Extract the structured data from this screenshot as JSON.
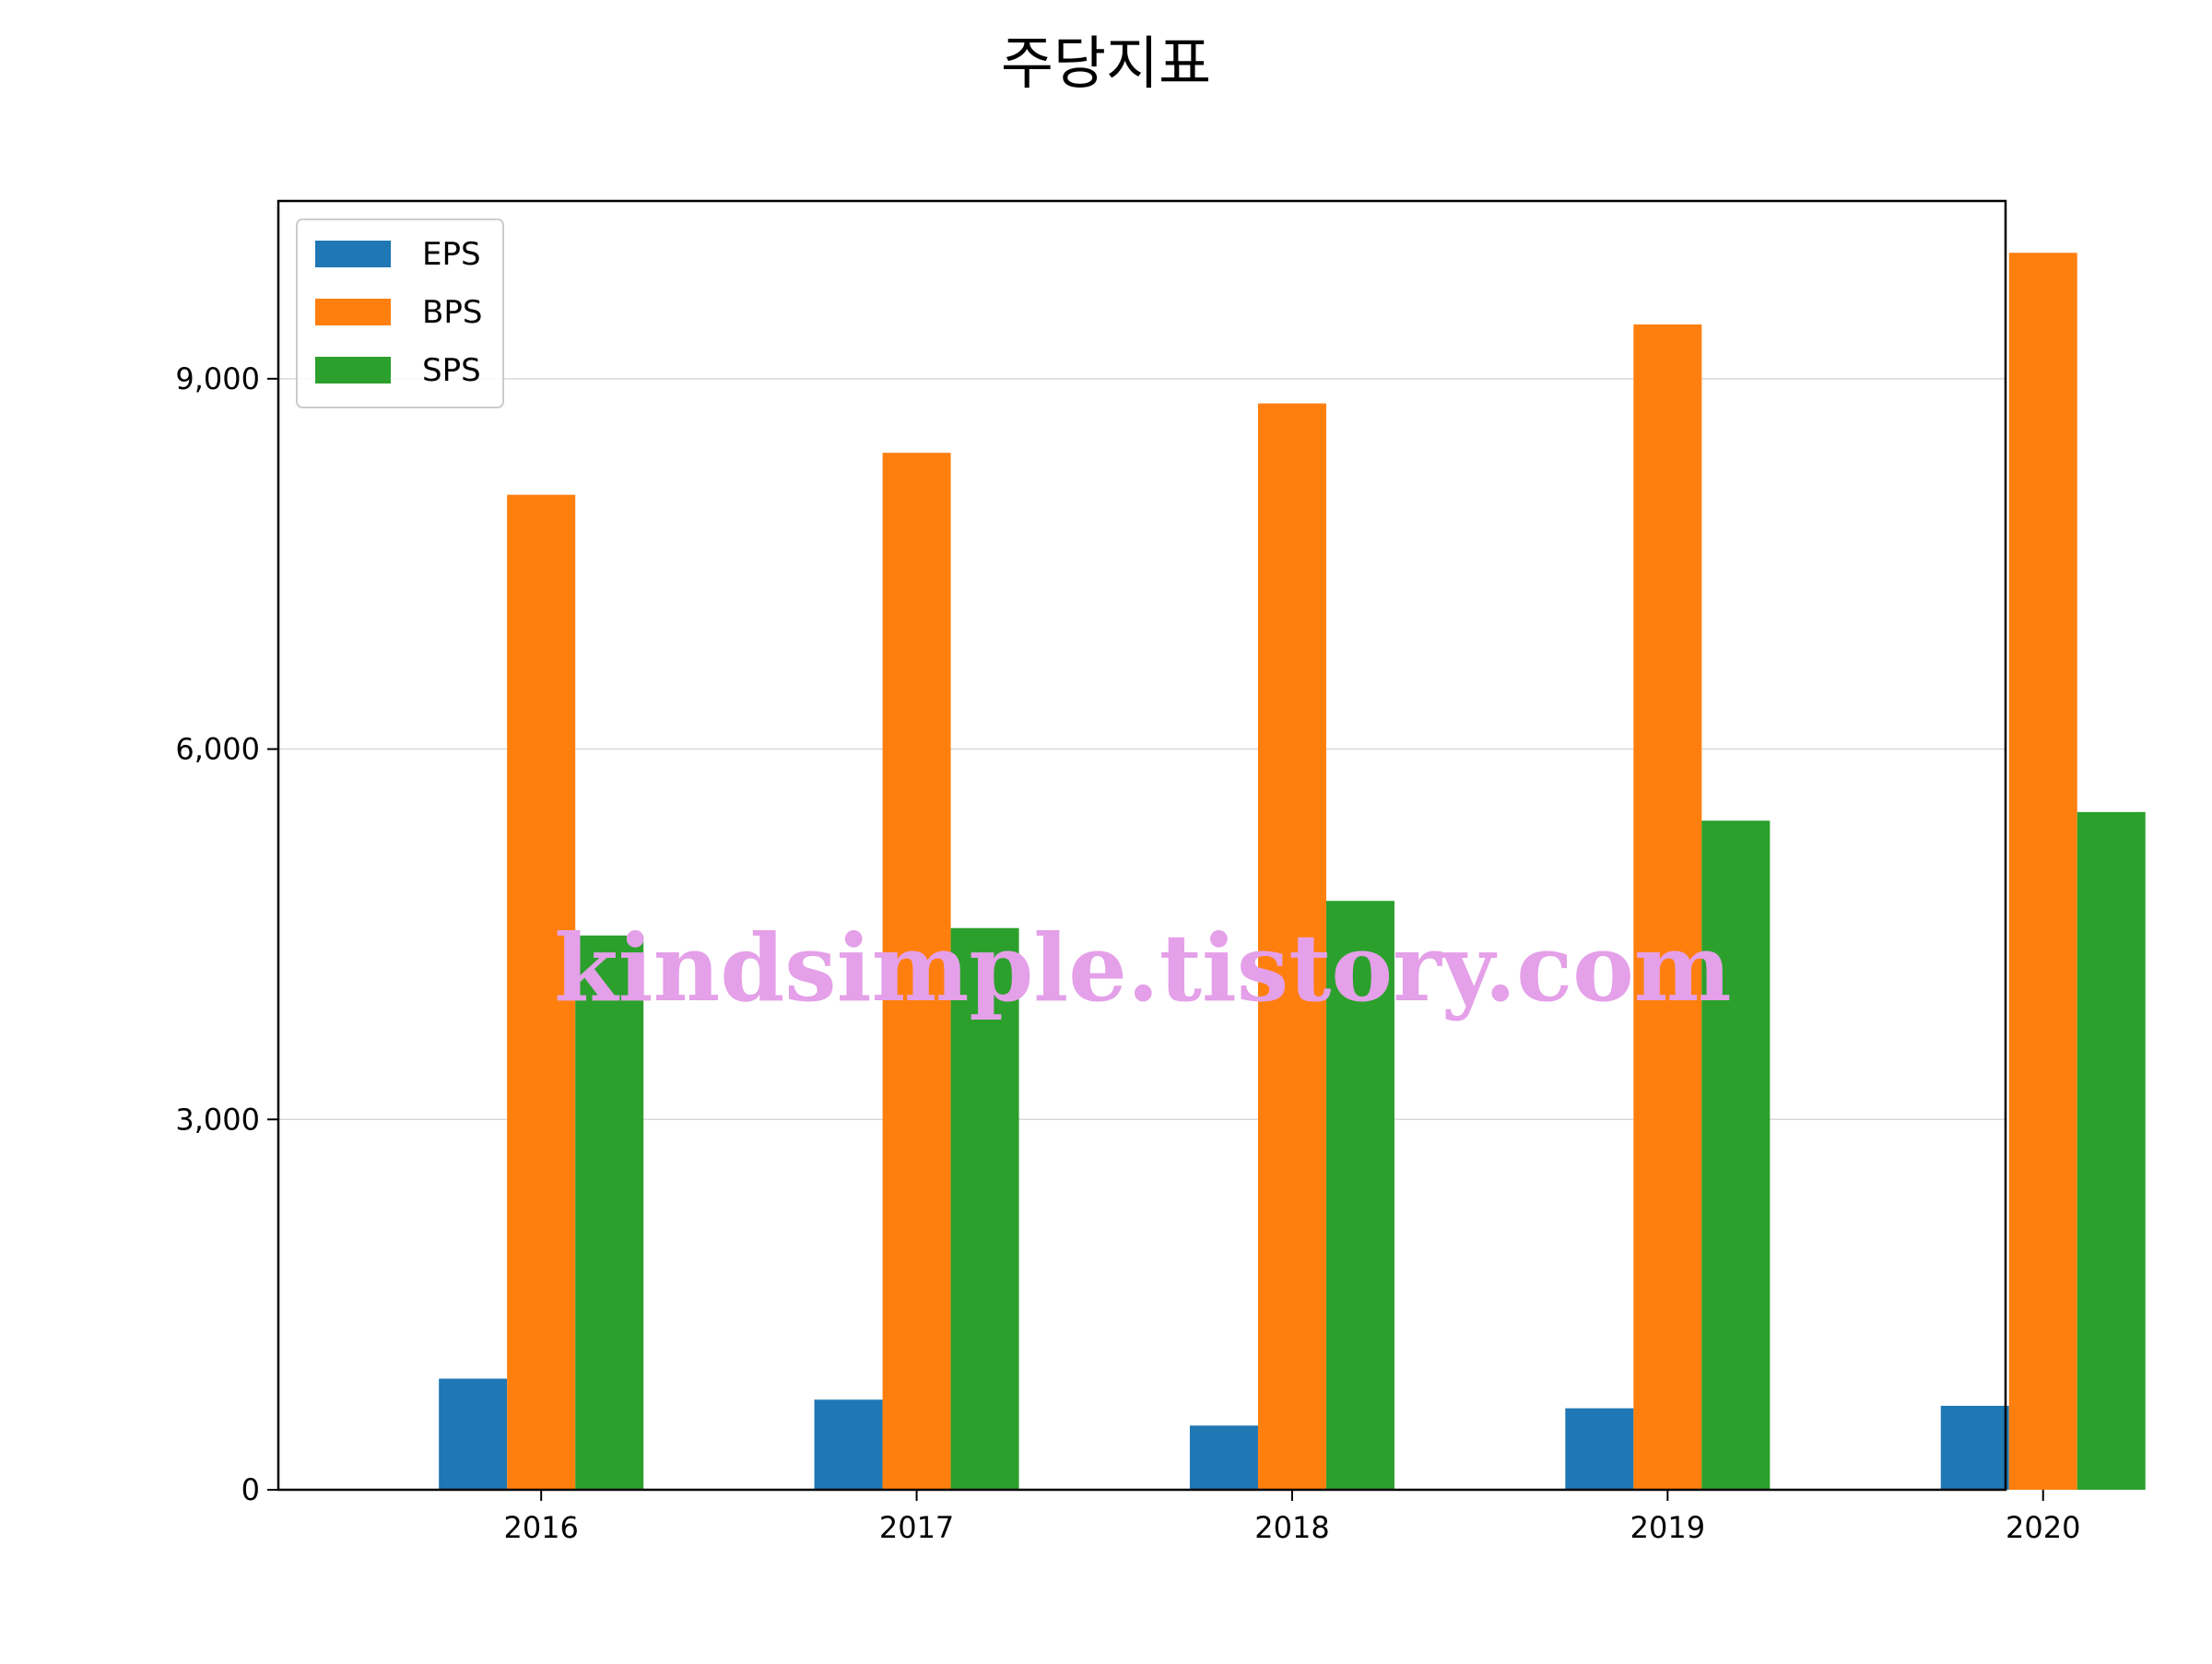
{
  "chart_data": {
    "type": "bar",
    "title": "주당지표",
    "xlabel": "",
    "ylabel": "",
    "categories": [
      "2016",
      "2017",
      "2018",
      "2019",
      "2020"
    ],
    "series": [
      {
        "name": "EPS",
        "color": "#1f77b4",
        "values": [
          900,
          730,
          520,
          660,
          680
        ]
      },
      {
        "name": "BPS",
        "color": "#ff7f0e",
        "values": [
          8060,
          8400,
          8800,
          9440,
          10020
        ]
      },
      {
        "name": "SPS",
        "color": "#2ca02c",
        "values": [
          4490,
          4550,
          4770,
          5420,
          5490
        ]
      }
    ],
    "ylim": [
      0,
      10440
    ],
    "yticks": [
      0,
      3000,
      6000,
      9000
    ],
    "ytick_labels": [
      "0",
      "3,000",
      "6,000",
      "9,000"
    ],
    "grid": "horizontal",
    "legend_position": "top-left",
    "watermark": "kindsimple.tistory.com"
  }
}
